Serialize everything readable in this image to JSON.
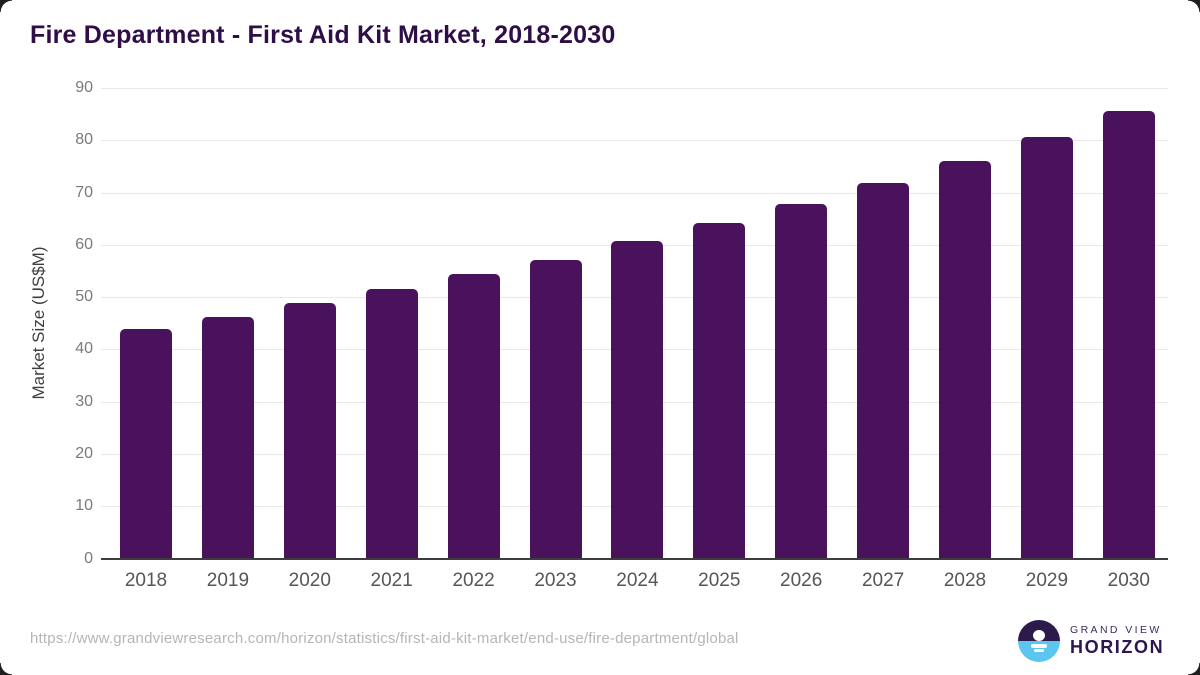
{
  "chart_data": {
    "type": "bar",
    "title": "Fire Department - First Aid Kit Market, 2018-2030",
    "categories": [
      "2018",
      "2019",
      "2020",
      "2021",
      "2022",
      "2023",
      "2024",
      "2025",
      "2026",
      "2027",
      "2028",
      "2029",
      "2030"
    ],
    "values": [
      44.0,
      46.3,
      48.9,
      51.5,
      54.4,
      57.2,
      60.8,
      64.2,
      67.9,
      71.8,
      76.1,
      80.7,
      85.6
    ],
    "xlabel": "",
    "ylabel": "Market Size (US$M)",
    "ylim": [
      0,
      90
    ],
    "ytick_step": 10,
    "grid": "horizontal",
    "legend": "none",
    "bar_color": "#4a115c"
  },
  "colors": {
    "accent_purple": "#4a115c",
    "title_purple": "#2f0e47",
    "logo_dark": "#2b1a4a",
    "logo_blue": "#5cc6f0"
  },
  "footer": {
    "source_url": "https://www.grandviewresearch.com/horizon/statistics/first-aid-kit-market/end-use/fire-department/global",
    "logo": {
      "icon": "horizon-sunrise-icon",
      "line1": "GRAND VIEW",
      "line2": "HORIZON"
    }
  }
}
